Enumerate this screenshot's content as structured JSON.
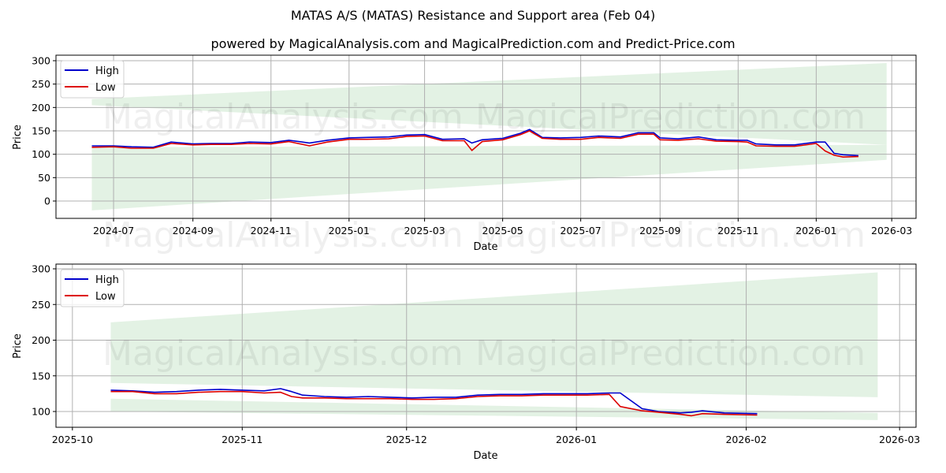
{
  "title": "MATAS A/S (MATAS) Resistance and Support area (Feb 04)",
  "subtitle": "powered by MagicalAnalysis.com and MagicalPrediction.com and Predict-Price.com",
  "watermarks": [
    "MagicalAnalysis.com",
    "MagicalPrediction.com"
  ],
  "colors": {
    "high": "#0000cc",
    "low": "#dd0000",
    "band": "#c8e6c9",
    "grid": "#b0b0b0"
  },
  "chart_data": [
    {
      "type": "line",
      "title": "Full range",
      "xlabel": "Date",
      "ylabel": "Price",
      "ylim": [
        -38,
        310
      ],
      "yticks": [
        0,
        50,
        100,
        150,
        200,
        250,
        300
      ],
      "xticks": [
        "2024-07",
        "2024-09",
        "2024-11",
        "2025-01",
        "2025-03",
        "2025-05",
        "2025-07",
        "2025-09",
        "2025-11",
        "2026-01",
        "2026-03"
      ],
      "grid": true,
      "legend": {
        "position": "upper left",
        "entries": [
          "High",
          "Low"
        ]
      },
      "x": [
        "2024-06-14",
        "2024-07-01",
        "2024-07-15",
        "2024-08-01",
        "2024-08-15",
        "2024-09-01",
        "2024-09-15",
        "2024-10-01",
        "2024-10-15",
        "2024-11-01",
        "2024-11-15",
        "2024-12-01",
        "2024-12-15",
        "2025-01-01",
        "2025-01-15",
        "2025-02-01",
        "2025-02-15",
        "2025-03-01",
        "2025-03-15",
        "2025-04-01",
        "2025-04-07",
        "2025-04-15",
        "2025-05-01",
        "2025-05-15",
        "2025-05-22",
        "2025-06-01",
        "2025-06-15",
        "2025-07-01",
        "2025-07-15",
        "2025-08-01",
        "2025-08-15",
        "2025-08-27",
        "2025-09-01",
        "2025-09-15",
        "2025-10-01",
        "2025-10-15",
        "2025-11-01",
        "2025-11-08",
        "2025-11-15",
        "2025-12-01",
        "2025-12-15",
        "2026-01-01",
        "2026-01-08",
        "2026-01-15",
        "2026-01-22",
        "2026-02-03"
      ],
      "series": [
        {
          "name": "High",
          "values": [
            118,
            118,
            116,
            115,
            126,
            122,
            123,
            123,
            126,
            125,
            130,
            124,
            130,
            135,
            136,
            137,
            141,
            142,
            132,
            133,
            124,
            131,
            134,
            145,
            153,
            136,
            135,
            136,
            139,
            137,
            146,
            146,
            135,
            133,
            137,
            131,
            130,
            130,
            122,
            120,
            120,
            126,
            126,
            102,
            99,
            97
          ]
        },
        {
          "name": "Low",
          "values": [
            115,
            116,
            113,
            113,
            123,
            120,
            121,
            121,
            123,
            122,
            127,
            118,
            126,
            132,
            132,
            133,
            138,
            139,
            129,
            129,
            108,
            127,
            131,
            142,
            150,
            134,
            132,
            132,
            136,
            134,
            143,
            143,
            131,
            130,
            133,
            128,
            127,
            126,
            118,
            117,
            117,
            123,
            107,
            98,
            94,
            95
          ]
        }
      ],
      "bands": [
        {
          "name": "Resistance band (upper)",
          "x": [
            "2024-06-14",
            "2026-02-25"
          ],
          "top": [
            218,
            295
          ],
          "bottom": [
            205,
            120
          ]
        },
        {
          "name": "Support band (lower)",
          "x": [
            "2024-06-14",
            "2026-02-25"
          ],
          "top": [
            115,
            120
          ],
          "bottom": [
            -20,
            88
          ]
        }
      ]
    },
    {
      "type": "line",
      "title": "Recent range",
      "xlabel": "Date",
      "ylabel": "Price",
      "ylim": [
        77,
        305
      ],
      "yticks": [
        100,
        150,
        200,
        250,
        300
      ],
      "xticks": [
        "2025-10",
        "2025-11",
        "2025-12",
        "2026-01",
        "2026-02",
        "2026-03"
      ],
      "grid": true,
      "legend": {
        "position": "upper left",
        "entries": [
          "High",
          "Low"
        ]
      },
      "x": [
        "2025-10-08",
        "2025-10-12",
        "2025-10-16",
        "2025-10-20",
        "2025-10-24",
        "2025-10-28",
        "2025-11-01",
        "2025-11-05",
        "2025-11-08",
        "2025-11-10",
        "2025-11-12",
        "2025-11-16",
        "2025-11-20",
        "2025-11-24",
        "2025-11-28",
        "2025-12-02",
        "2025-12-06",
        "2025-12-10",
        "2025-12-14",
        "2025-12-18",
        "2025-12-22",
        "2025-12-26",
        "2025-12-30",
        "2026-01-03",
        "2026-01-07",
        "2026-01-09",
        "2026-01-13",
        "2026-01-16",
        "2026-01-20",
        "2026-01-22",
        "2026-01-24",
        "2026-01-28",
        "2026-02-03"
      ],
      "series": [
        {
          "name": "High",
          "values": [
            130,
            129,
            127,
            128,
            130,
            131,
            130,
            129,
            132,
            128,
            123,
            121,
            120,
            121,
            120,
            119,
            120,
            120,
            123,
            124,
            124,
            125,
            125,
            125,
            126,
            126,
            104,
            100,
            98,
            99,
            101,
            98,
            97
          ]
        },
        {
          "name": "Low",
          "values": [
            128,
            128,
            125,
            125,
            127,
            128,
            128,
            126,
            127,
            121,
            119,
            119,
            118,
            118,
            118,
            117,
            117,
            118,
            121,
            122,
            122,
            123,
            123,
            123,
            124,
            107,
            101,
            99,
            96,
            94,
            97,
            96,
            95
          ]
        }
      ],
      "bands": [
        {
          "name": "Resistance band (upper)",
          "x": [
            "2025-10-08",
            "2026-02-25"
          ],
          "top": [
            225,
            295
          ],
          "bottom": [
            140,
            120
          ]
        },
        {
          "name": "Support band (lower)",
          "x": [
            "2025-10-08",
            "2026-02-25"
          ],
          "top": [
            118,
            98
          ],
          "bottom": [
            100,
            88
          ]
        }
      ]
    }
  ]
}
